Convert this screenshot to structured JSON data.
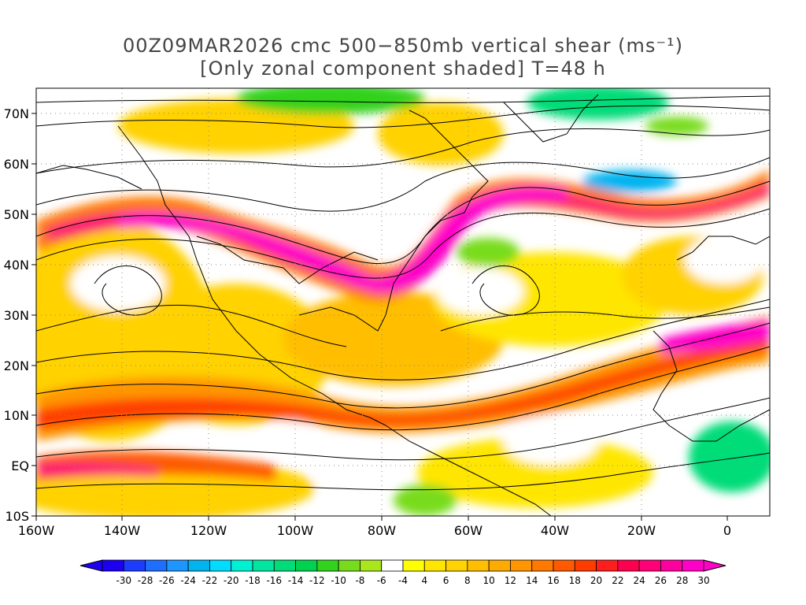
{
  "title": {
    "line1": "00Z09MAR2026 cmc 500−850mb vertical shear (ms⁻¹)",
    "line2": "[Only zonal component shaded] T=48 h"
  },
  "axes": {
    "lon_labels": [
      "160W",
      "140W",
      "120W",
      "100W",
      "80W",
      "60W",
      "40W",
      "20W",
      "0"
    ],
    "lat_labels": [
      "70N",
      "60N",
      "50N",
      "40N",
      "30N",
      "20N",
      "10N",
      "EQ",
      "10S"
    ],
    "lon_range": [
      -160,
      10
    ],
    "lat_range": [
      -10,
      75
    ],
    "gridlines": "dotted"
  },
  "colorbar": {
    "labels": [
      "-30",
      "-28",
      "-26",
      "-24",
      "-22",
      "-20",
      "-18",
      "-16",
      "-14",
      "-12",
      "-10",
      "-8",
      "-6",
      "-4",
      "4",
      "6",
      "8",
      "10",
      "12",
      "14",
      "16",
      "18",
      "20",
      "22",
      "24",
      "26",
      "28",
      "30"
    ],
    "colors": [
      "#1e00f0",
      "#1e3cff",
      "#1e6eff",
      "#1e96ff",
      "#00b4f0",
      "#00dcff",
      "#00f0d2",
      "#00e6a0",
      "#00dc78",
      "#00d250",
      "#32d21e",
      "#78dc1e",
      "#aae61e",
      "#ffffff",
      "#ffff00",
      "#ffe600",
      "#ffd200",
      "#ffbe00",
      "#ffaa00",
      "#ff9600",
      "#ff7800",
      "#ff5a00",
      "#ff3c00",
      "#ff1e1e",
      "#ff0050",
      "#ff0078",
      "#ff00a0",
      "#ff00c8"
    ],
    "units": "ms⁻¹"
  },
  "map_features": {
    "shading": "zonal component of 500-850mb vertical shear",
    "overlay": "streamlines",
    "coastlines": "black"
  }
}
